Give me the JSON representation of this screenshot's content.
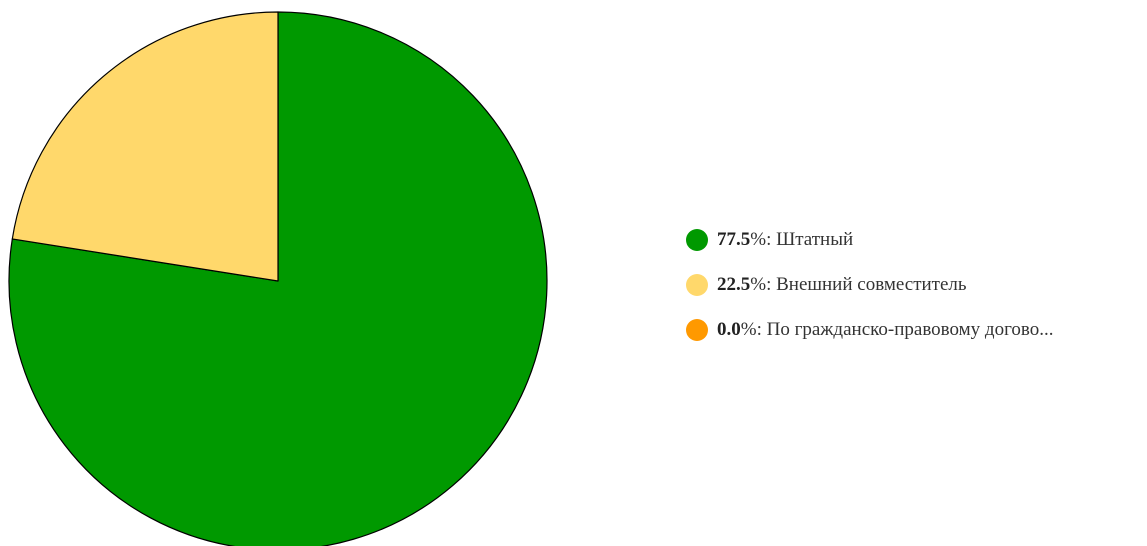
{
  "chart_data": {
    "type": "pie",
    "slices": [
      {
        "label": "Штатный",
        "value": 77.5,
        "value_text": "77.5",
        "color": "#009900"
      },
      {
        "label": "Внешний совместитель",
        "value": 22.5,
        "value_text": "22.5",
        "color": "#FFD86B"
      },
      {
        "label": "По гражданско-правовому догово...",
        "value": 0.0,
        "value_text": "0.0",
        "color": "#FF9900"
      }
    ],
    "percent_suffix": "%: ",
    "start_angle_deg": 0,
    "direction": "clockwise",
    "legend_position": "right"
  }
}
